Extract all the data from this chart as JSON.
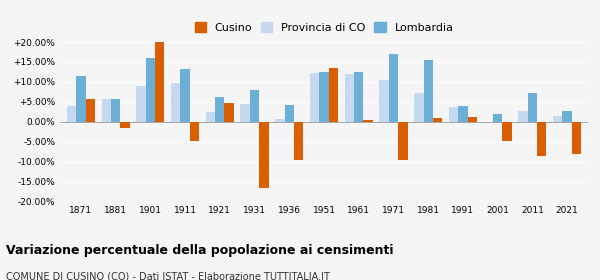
{
  "years": [
    1871,
    1881,
    1901,
    1911,
    1921,
    1931,
    1936,
    1951,
    1961,
    1971,
    1981,
    1991,
    2001,
    2011,
    2021
  ],
  "cusino": [
    5.8,
    -1.5,
    20.0,
    -4.8,
    4.8,
    -16.5,
    -9.5,
    13.5,
    0.5,
    -9.5,
    1.0,
    1.2,
    -4.8,
    -8.5,
    -8.0
  ],
  "provincia_co": [
    4.0,
    5.8,
    9.0,
    9.8,
    2.5,
    4.5,
    0.8,
    12.2,
    12.0,
    10.5,
    7.2,
    3.8,
    -0.1,
    2.8,
    1.5
  ],
  "lombardia": [
    11.5,
    5.8,
    16.0,
    13.2,
    6.2,
    8.0,
    4.2,
    12.5,
    12.5,
    17.0,
    15.5,
    4.0,
    2.0,
    7.2,
    2.8
  ],
  "color_cusino": "#d95f02",
  "color_provincia": "#c6d9f0",
  "color_lombardia": "#6baed6",
  "title": "Variazione percentuale della popolazione ai censimenti",
  "subtitle": "COMUNE DI CUSINO (CO) - Dati ISTAT - Elaborazione TUTTITALIA.IT",
  "ymin": -20.0,
  "ymax": 20.0,
  "yticks": [
    -20.0,
    -15.0,
    -10.0,
    -5.0,
    0.0,
    5.0,
    10.0,
    15.0,
    20.0
  ],
  "bg_color": "#f5f5f5"
}
